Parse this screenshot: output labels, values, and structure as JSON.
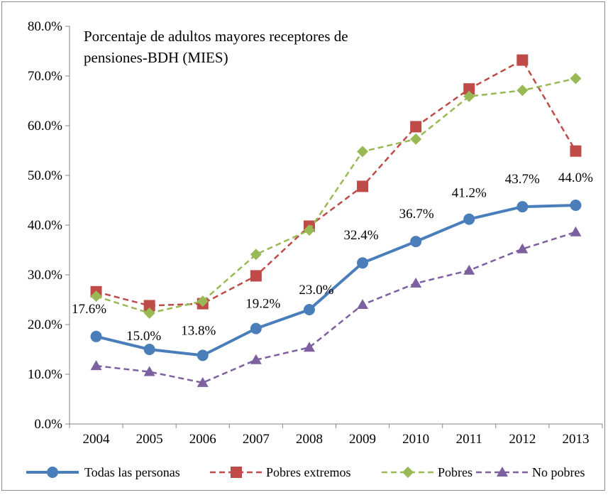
{
  "chart_data": {
    "type": "line",
    "title_lines": [
      "Porcentaje de adultos mayores receptores de",
      "pensiones-BDH (MIES)"
    ],
    "xlabel": "",
    "ylabel": "",
    "categories": [
      "2004",
      "2005",
      "2006",
      "2007",
      "2008",
      "2009",
      "2010",
      "2011",
      "2012",
      "2013"
    ],
    "ylim": [
      0,
      80
    ],
    "yticks": [
      0,
      10,
      20,
      30,
      40,
      50,
      60,
      70,
      80
    ],
    "ytick_labels": [
      "0.0%",
      "10.0%",
      "20.0%",
      "30.0%",
      "40.0%",
      "50.0%",
      "60.0%",
      "70.0%",
      "80.0%"
    ],
    "grid": false,
    "legend_position": "bottom",
    "series": [
      {
        "name": "Todas las personas",
        "values": [
          17.6,
          15.0,
          13.8,
          19.2,
          23.0,
          32.4,
          36.7,
          41.2,
          43.7,
          44.0
        ],
        "data_labels": [
          "17.6%",
          "15.0%",
          "13.8%",
          "19.2%",
          "23.0%",
          "32.4%",
          "36.7%",
          "41.2%",
          "43.7%",
          "44.0%"
        ],
        "color": "#4a7ebb",
        "marker": "circle",
        "dash": false
      },
      {
        "name": "Pobres extremos",
        "values": [
          26.6,
          23.8,
          24.2,
          29.8,
          39.8,
          47.8,
          59.8,
          67.4,
          73.2,
          54.9
        ],
        "color": "#be4b48",
        "marker": "square",
        "dash": true
      },
      {
        "name": "Pobres",
        "values": [
          25.7,
          22.3,
          24.7,
          34.1,
          39.0,
          54.8,
          57.3,
          65.9,
          67.1,
          69.5
        ],
        "color": "#98b954",
        "marker": "diamond",
        "dash": true
      },
      {
        "name": "No pobres",
        "values": [
          11.7,
          10.5,
          8.3,
          12.9,
          15.4,
          24.0,
          28.3,
          30.9,
          35.2,
          38.6
        ],
        "color": "#7d60a0",
        "marker": "triangle",
        "dash": true
      }
    ]
  }
}
